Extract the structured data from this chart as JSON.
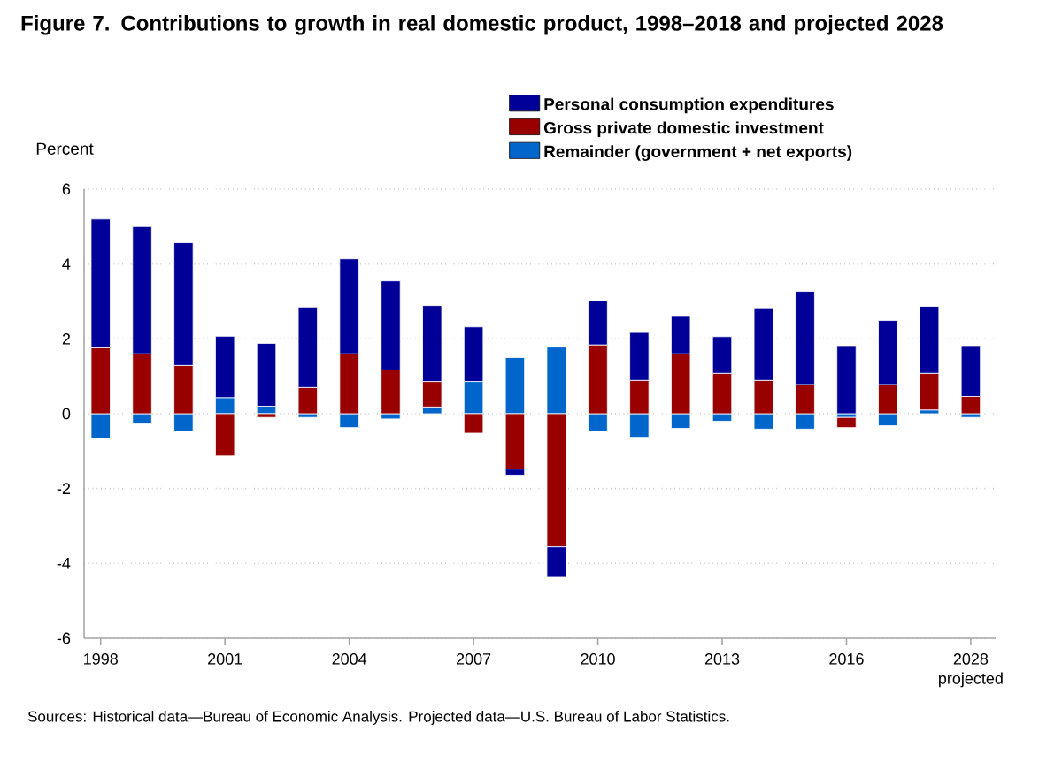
{
  "chart_data": {
    "type": "bar",
    "stacked": true,
    "title": "Figure 7. Contributions to growth in real domestic product, 1998–2018 and projected 2028",
    "ylabel": "Percent",
    "categories": [
      "1998",
      null,
      null,
      "2001",
      null,
      null,
      "2004",
      null,
      null,
      "2007",
      null,
      null,
      "2010",
      null,
      null,
      "2013",
      null,
      null,
      "2016",
      null,
      null,
      "2028 projected"
    ],
    "series": [
      {
        "name": "Remainder (government + net exports)",
        "color": "#0066cc",
        "values": [
          -0.66,
          -0.27,
          -0.47,
          0.43,
          0.2,
          -0.1,
          -0.37,
          -0.14,
          0.18,
          0.86,
          1.5,
          1.78,
          -0.46,
          -0.63,
          -0.39,
          -0.2,
          -0.41,
          -0.41,
          -0.1,
          -0.32,
          0.1,
          -0.1
        ]
      },
      {
        "name": "Gross private domestic investment",
        "color": "#990000",
        "values": [
          1.76,
          1.6,
          1.29,
          -1.13,
          -0.1,
          0.7,
          1.6,
          1.17,
          0.68,
          -0.52,
          -1.48,
          -3.56,
          1.84,
          0.89,
          1.6,
          1.08,
          0.89,
          0.78,
          -0.27,
          0.78,
          0.98,
          0.46
        ]
      },
      {
        "name": "Personal consumption expenditures",
        "color": "#000099",
        "values": [
          3.44,
          3.4,
          3.28,
          1.64,
          1.68,
          2.15,
          2.54,
          2.38,
          2.03,
          1.46,
          -0.16,
          -0.81,
          1.18,
          1.28,
          1.0,
          0.98,
          1.94,
          2.49,
          1.82,
          1.71,
          1.79,
          1.36
        ]
      }
    ],
    "ylim": [
      -6,
      6
    ],
    "yticks": [
      -6,
      -4,
      -2,
      0,
      2,
      4,
      6
    ],
    "grid": "y",
    "legend": "top",
    "annotations": [
      "Sources: Historical data—Bureau of Economic Analysis. Projected data—U.S. Bureau of Labor Statistics."
    ]
  }
}
